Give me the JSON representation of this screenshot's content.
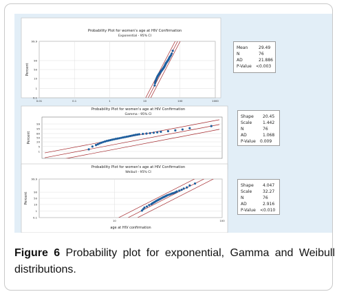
{
  "caption": {
    "label": "Figure 6",
    "text": "Probability plot for exponential, Gamma and Weibull distributions."
  },
  "colors": {
    "panel_background": "#e2eef7",
    "points": "#1f5f9e",
    "fit_lines": "#a3262a"
  },
  "chart_data": [
    {
      "type": "scatter",
      "title": "Probability Plot for women's age at HIV Confirmation",
      "subtitle": "Exponential - 95% CI",
      "xlabel": "",
      "ylabel": "Percent",
      "x_scale": "log",
      "x_ticks": [
        "0.01",
        "0.1",
        "1",
        "10",
        "100",
        "1000"
      ],
      "y_ticks": [
        "0.1",
        "1",
        "10",
        "50",
        "90",
        "99.9"
      ],
      "xlim": [
        0.01,
        1000
      ],
      "ylim": [
        0.1,
        99.9
      ],
      "series": [
        {
          "x": [
            19,
            19.5,
            20,
            20.5,
            21,
            21.5,
            22,
            22.5,
            23,
            23.5,
            24,
            24.5,
            25,
            25.5,
            26,
            26.5,
            27,
            27.5,
            28,
            28.5,
            29,
            29.5,
            30,
            30.5,
            31,
            31.5,
            32,
            32.5,
            33,
            33.5,
            34,
            34.5,
            35,
            35.5,
            36,
            36.5,
            37,
            37.5,
            38,
            38.5,
            39,
            39.5,
            40,
            41,
            42,
            43,
            44,
            45,
            46,
            47,
            48,
            49,
            50,
            52,
            55,
            58,
            62
          ],
          "y": [
            2,
            3.5,
            5,
            6.5,
            8,
            10,
            12,
            14,
            16,
            18,
            20,
            22,
            24,
            26,
            28,
            30,
            32,
            34,
            36,
            38,
            40,
            42,
            44,
            46,
            48,
            50,
            52,
            54,
            56,
            58,
            60,
            62,
            64,
            66,
            68,
            70,
            72,
            74,
            76,
            78,
            80,
            81.5,
            83,
            84.5,
            86,
            87.5,
            89,
            90,
            91,
            92,
            93,
            94,
            95,
            96,
            97,
            98,
            99
          ]
        }
      ],
      "stats": [
        {
          "label": "Mean",
          "value": "29.49"
        },
        {
          "label": "N",
          "value": "76"
        },
        {
          "label": "AD",
          "value": "21.886"
        },
        {
          "label": "P-Value",
          "value": "<0.003"
        }
      ]
    },
    {
      "type": "scatter",
      "title": "Probability Plot for women's age at HIV Confirmation",
      "subtitle": "Gamma - 95% CI",
      "xlabel": "",
      "ylabel": "Percent",
      "x_scale": "linear",
      "y_ticks": [
        "99",
        "95",
        "80",
        "50",
        "20",
        "5",
        "1"
      ],
      "series": [
        {
          "x": [
            18,
            19,
            20,
            20.5,
            21,
            21.5,
            22,
            22.5,
            23,
            23.5,
            24,
            24.5,
            25,
            25.5,
            26,
            26.5,
            27,
            27.5,
            28,
            28.5,
            29,
            29.5,
            30,
            30.5,
            31,
            31.5,
            32,
            33,
            34,
            35,
            36,
            37,
            38,
            40,
            42,
            44,
            46,
            52
          ],
          "y": [
            2,
            5,
            8,
            10,
            13,
            16,
            19,
            22,
            25,
            28,
            31,
            34,
            37,
            40,
            43,
            46,
            49,
            52,
            55,
            58,
            61,
            64,
            67,
            70,
            72,
            74,
            76,
            78,
            80,
            82,
            84,
            86,
            88,
            90,
            92,
            94,
            96,
            98
          ]
        }
      ],
      "stats": [
        {
          "label": "Shape",
          "value": "20.45"
        },
        {
          "label": "Scale",
          "value": "1.442"
        },
        {
          "label": "N",
          "value": "76"
        },
        {
          "label": "AD",
          "value": "1.068"
        },
        {
          "label": "P-Value",
          "value": "0.009"
        }
      ]
    },
    {
      "type": "scatter",
      "title": "Probability Plot for women's age at HIV Confirmation",
      "subtitle": "Weibull - 95% CI",
      "xlabel": "age at HIV confirmation",
      "ylabel": "Percent",
      "x_scale": "log",
      "x_ticks": [
        "10",
        "100"
      ],
      "y_ticks": [
        "99.9",
        "90",
        "50",
        "10",
        "1",
        "0.1"
      ],
      "series": [
        {
          "x": [
            18,
            18.5,
            19,
            20,
            21,
            22,
            22.5,
            23,
            23.5,
            24,
            24.5,
            25,
            25.5,
            26,
            26.5,
            27,
            27.5,
            28,
            28.5,
            29,
            29.5,
            30,
            30.5,
            31,
            32,
            33,
            34,
            35,
            36,
            37,
            38,
            40,
            42,
            44,
            47,
            50,
            56
          ],
          "y": [
            1.2,
            2,
            3.5,
            5,
            8,
            11,
            14,
            17,
            20,
            24,
            28,
            32,
            36,
            40,
            44,
            48,
            52,
            56,
            60,
            63,
            66,
            69,
            72,
            75,
            78,
            81,
            84,
            86,
            88,
            90,
            92,
            94,
            95.5,
            97,
            98,
            99,
            99.5
          ]
        }
      ],
      "stats": [
        {
          "label": "Shape",
          "value": "4.047"
        },
        {
          "label": "Scale",
          "value": "32.27"
        },
        {
          "label": "N",
          "value": "76"
        },
        {
          "label": "AD",
          "value": "2.916"
        },
        {
          "label": "P-Value",
          "value": "<0.010"
        }
      ]
    }
  ]
}
